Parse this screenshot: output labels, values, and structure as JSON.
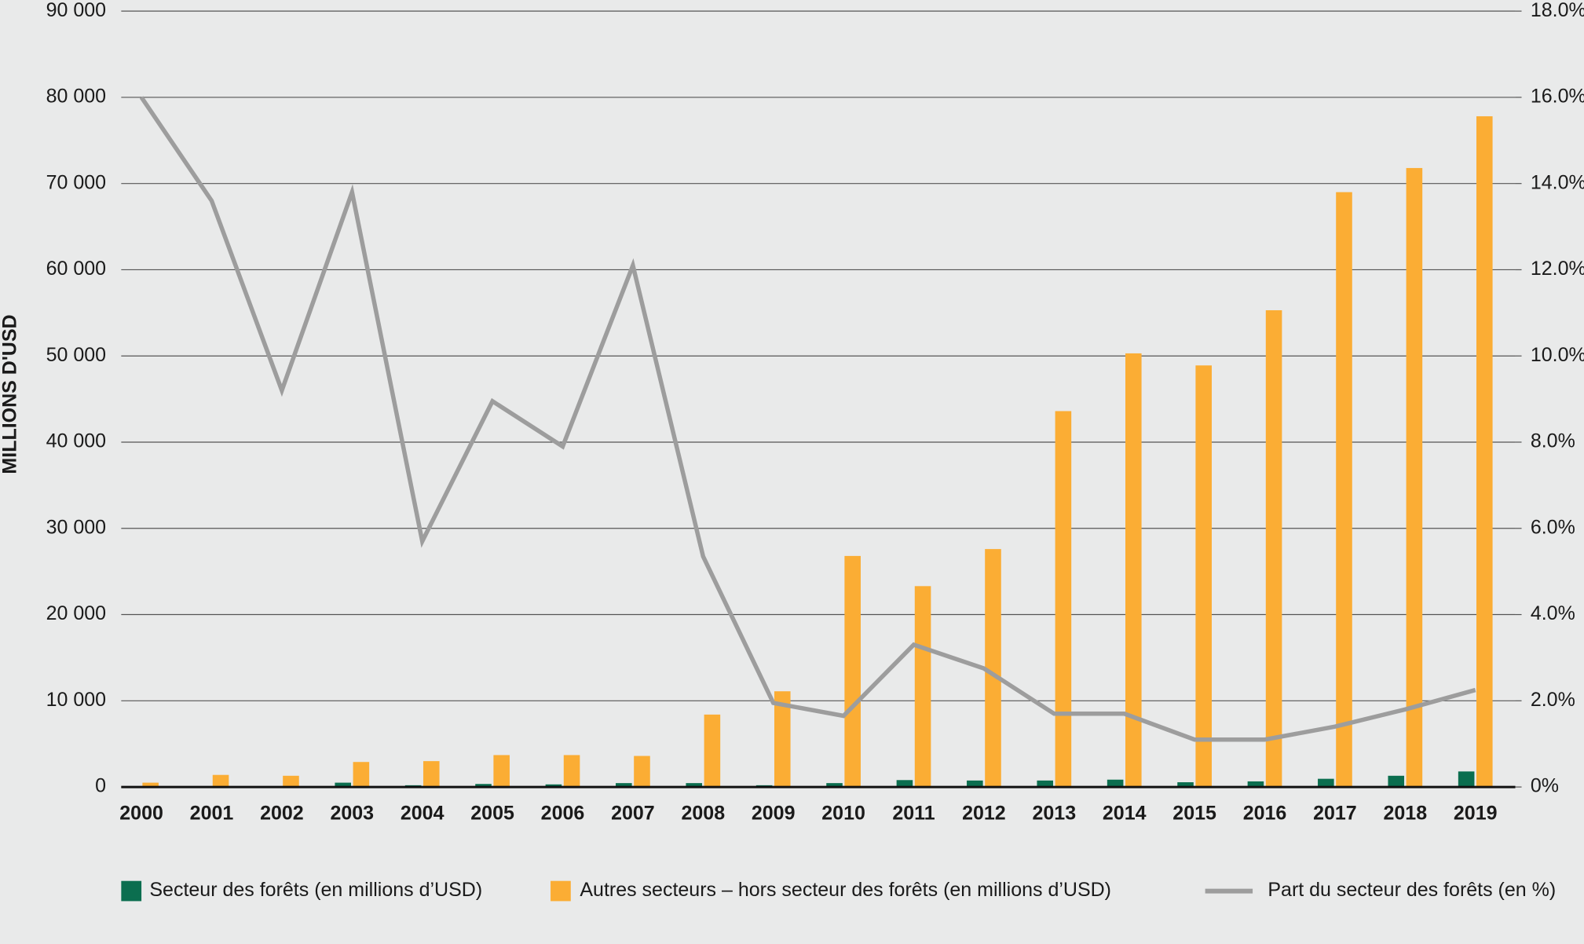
{
  "chart_data": {
    "type": "bar-line",
    "y_label": "MILLIONS D'USD",
    "categories": [
      "2000",
      "2001",
      "2002",
      "2003",
      "2004",
      "2005",
      "2006",
      "2007",
      "2008",
      "2009",
      "2010",
      "2011",
      "2012",
      "2013",
      "2014",
      "2015",
      "2016",
      "2017",
      "2018",
      "2019"
    ],
    "series": [
      {
        "name": "Secteur des forêts (en millions d’USD)",
        "type": "bar",
        "color": "#0b6e4f",
        "values": [
          100,
          100,
          100,
          500,
          200,
          350,
          300,
          450,
          450,
          200,
          450,
          800,
          750,
          750,
          850,
          550,
          650,
          950,
          1300,
          1800
        ]
      },
      {
        "name": "Autres secteurs – hors secteur des forêts (en millions d’USD)",
        "type": "bar",
        "color": "#fbad34",
        "values": [
          500,
          1400,
          1300,
          2900,
          3000,
          3700,
          3700,
          3600,
          8400,
          11100,
          26800,
          23300,
          27600,
          43600,
          50300,
          48900,
          55300,
          69000,
          71800,
          77800
        ]
      },
      {
        "name": "Part du secteur des forêts (en %)",
        "type": "line",
        "axis": "y2",
        "color": "#9d9d9d",
        "values": [
          16.0,
          13.6,
          9.2,
          13.8,
          5.7,
          8.95,
          7.9,
          12.1,
          5.35,
          1.95,
          1.65,
          3.3,
          2.75,
          1.7,
          1.7,
          1.1,
          1.1,
          1.4,
          1.8,
          2.25
        ]
      }
    ],
    "ylim": [
      0,
      90000
    ],
    "yticks": [
      0,
      {
        "value": 10000,
        "label": "10 000"
      },
      {
        "value": 20000,
        "label": "20 000"
      },
      {
        "value": 30000,
        "label": "30 000"
      },
      {
        "value": 40000,
        "label": "40 000"
      },
      {
        "value": 50000,
        "label": "50 000"
      },
      {
        "value": 60000,
        "label": "60 000"
      },
      {
        "value": 70000,
        "label": "70 000"
      },
      {
        "value": 80000,
        "label": "80 000"
      },
      {
        "value": 90000,
        "label": "90 000"
      }
    ],
    "y2lim": [
      0,
      18
    ],
    "y2ticks": [
      {
        "value": 0,
        "label": "0%"
      },
      {
        "value": 2,
        "label": "2.0%"
      },
      {
        "value": 4,
        "label": "4.0%"
      },
      {
        "value": 6,
        "label": "6.0%"
      },
      {
        "value": 8,
        "label": "8.0%"
      },
      {
        "value": 10,
        "label": "10.0%"
      },
      {
        "value": 12,
        "label": "12.0%"
      },
      {
        "value": 14,
        "label": "14.0%"
      },
      {
        "value": 16,
        "label": "16.0%"
      },
      {
        "value": 18,
        "label": "18.0%"
      }
    ],
    "grid": true,
    "legend": "bottom"
  }
}
